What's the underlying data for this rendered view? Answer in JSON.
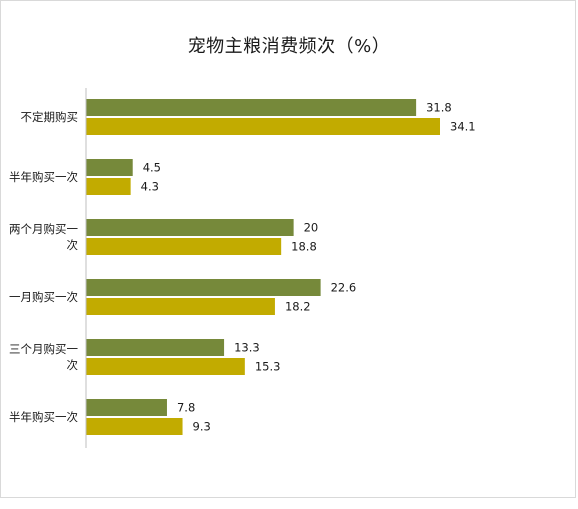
{
  "chart_data": {
    "type": "bar",
    "orientation": "horizontal",
    "title": "宠物主粮消费频次（%）",
    "categories": [
      "不定期购买",
      "半年购买一次",
      "两个月购买一次",
      "一月购买一次",
      "三个月购买一次",
      "半年购买一次"
    ],
    "category_lines": [
      [
        "不定期购买"
      ],
      [
        "半年购买一次"
      ],
      [
        "两个月购买一",
        "次"
      ],
      [
        "一月购买一次"
      ],
      [
        "三个月购买一",
        "次"
      ],
      [
        "半年购买一次"
      ]
    ],
    "series": [
      {
        "values": [
          31.8,
          4.5,
          20,
          22.6,
          13.3,
          7.8
        ],
        "color": "#76893a"
      },
      {
        "values": [
          34.1,
          4.3,
          18.8,
          18.2,
          15.3,
          9.3
        ],
        "color": "#c2ab00"
      }
    ],
    "value_labels": [
      [
        "31.8",
        "4.5",
        "20",
        "22.6",
        "13.3",
        "7.8"
      ],
      [
        "34.1",
        "4.3",
        "18.8",
        "18.2",
        "15.3",
        "9.3"
      ]
    ],
    "xlim": [
      0,
      40
    ],
    "grid": false,
    "legend": "none",
    "axis_color": "#bfbfbf"
  }
}
